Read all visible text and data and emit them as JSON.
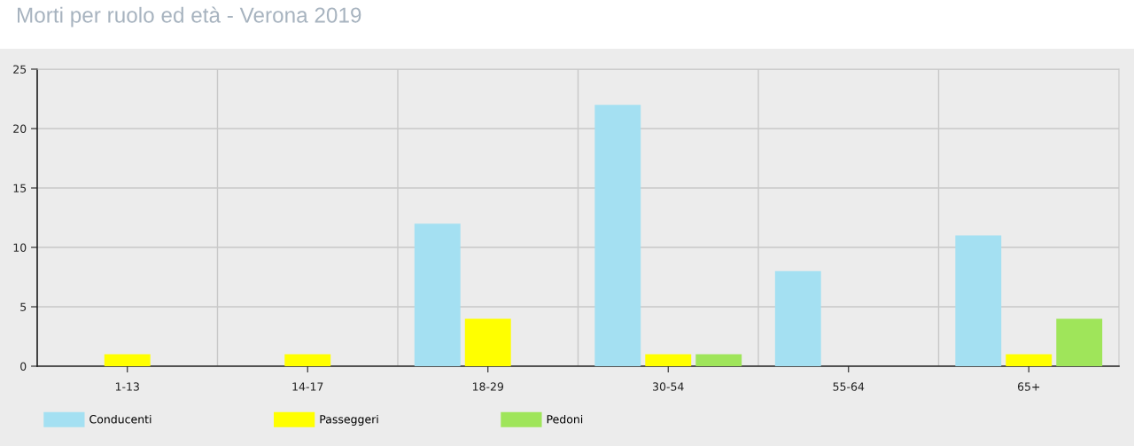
{
  "chart_data": {
    "type": "bar",
    "title": "Morti per ruolo ed età - Verona 2019",
    "categories": [
      "1-13",
      "14-17",
      "18-29",
      "30-54",
      "55-64",
      "65+"
    ],
    "series": [
      {
        "name": "Conducenti",
        "color": "#a4e0f2",
        "values": [
          0,
          0,
          12,
          22,
          8,
          11
        ]
      },
      {
        "name": "Passeggeri",
        "color": "#ffff00",
        "values": [
          1,
          1,
          4,
          1,
          0,
          1
        ]
      },
      {
        "name": "Pedoni",
        "color": "#9fe55a",
        "values": [
          0,
          0,
          0,
          1,
          0,
          4
        ]
      }
    ],
    "ylim": [
      0,
      25
    ],
    "yticks": [
      0,
      5,
      10,
      15,
      20,
      25
    ],
    "grid": true,
    "legend": "bottom left"
  }
}
